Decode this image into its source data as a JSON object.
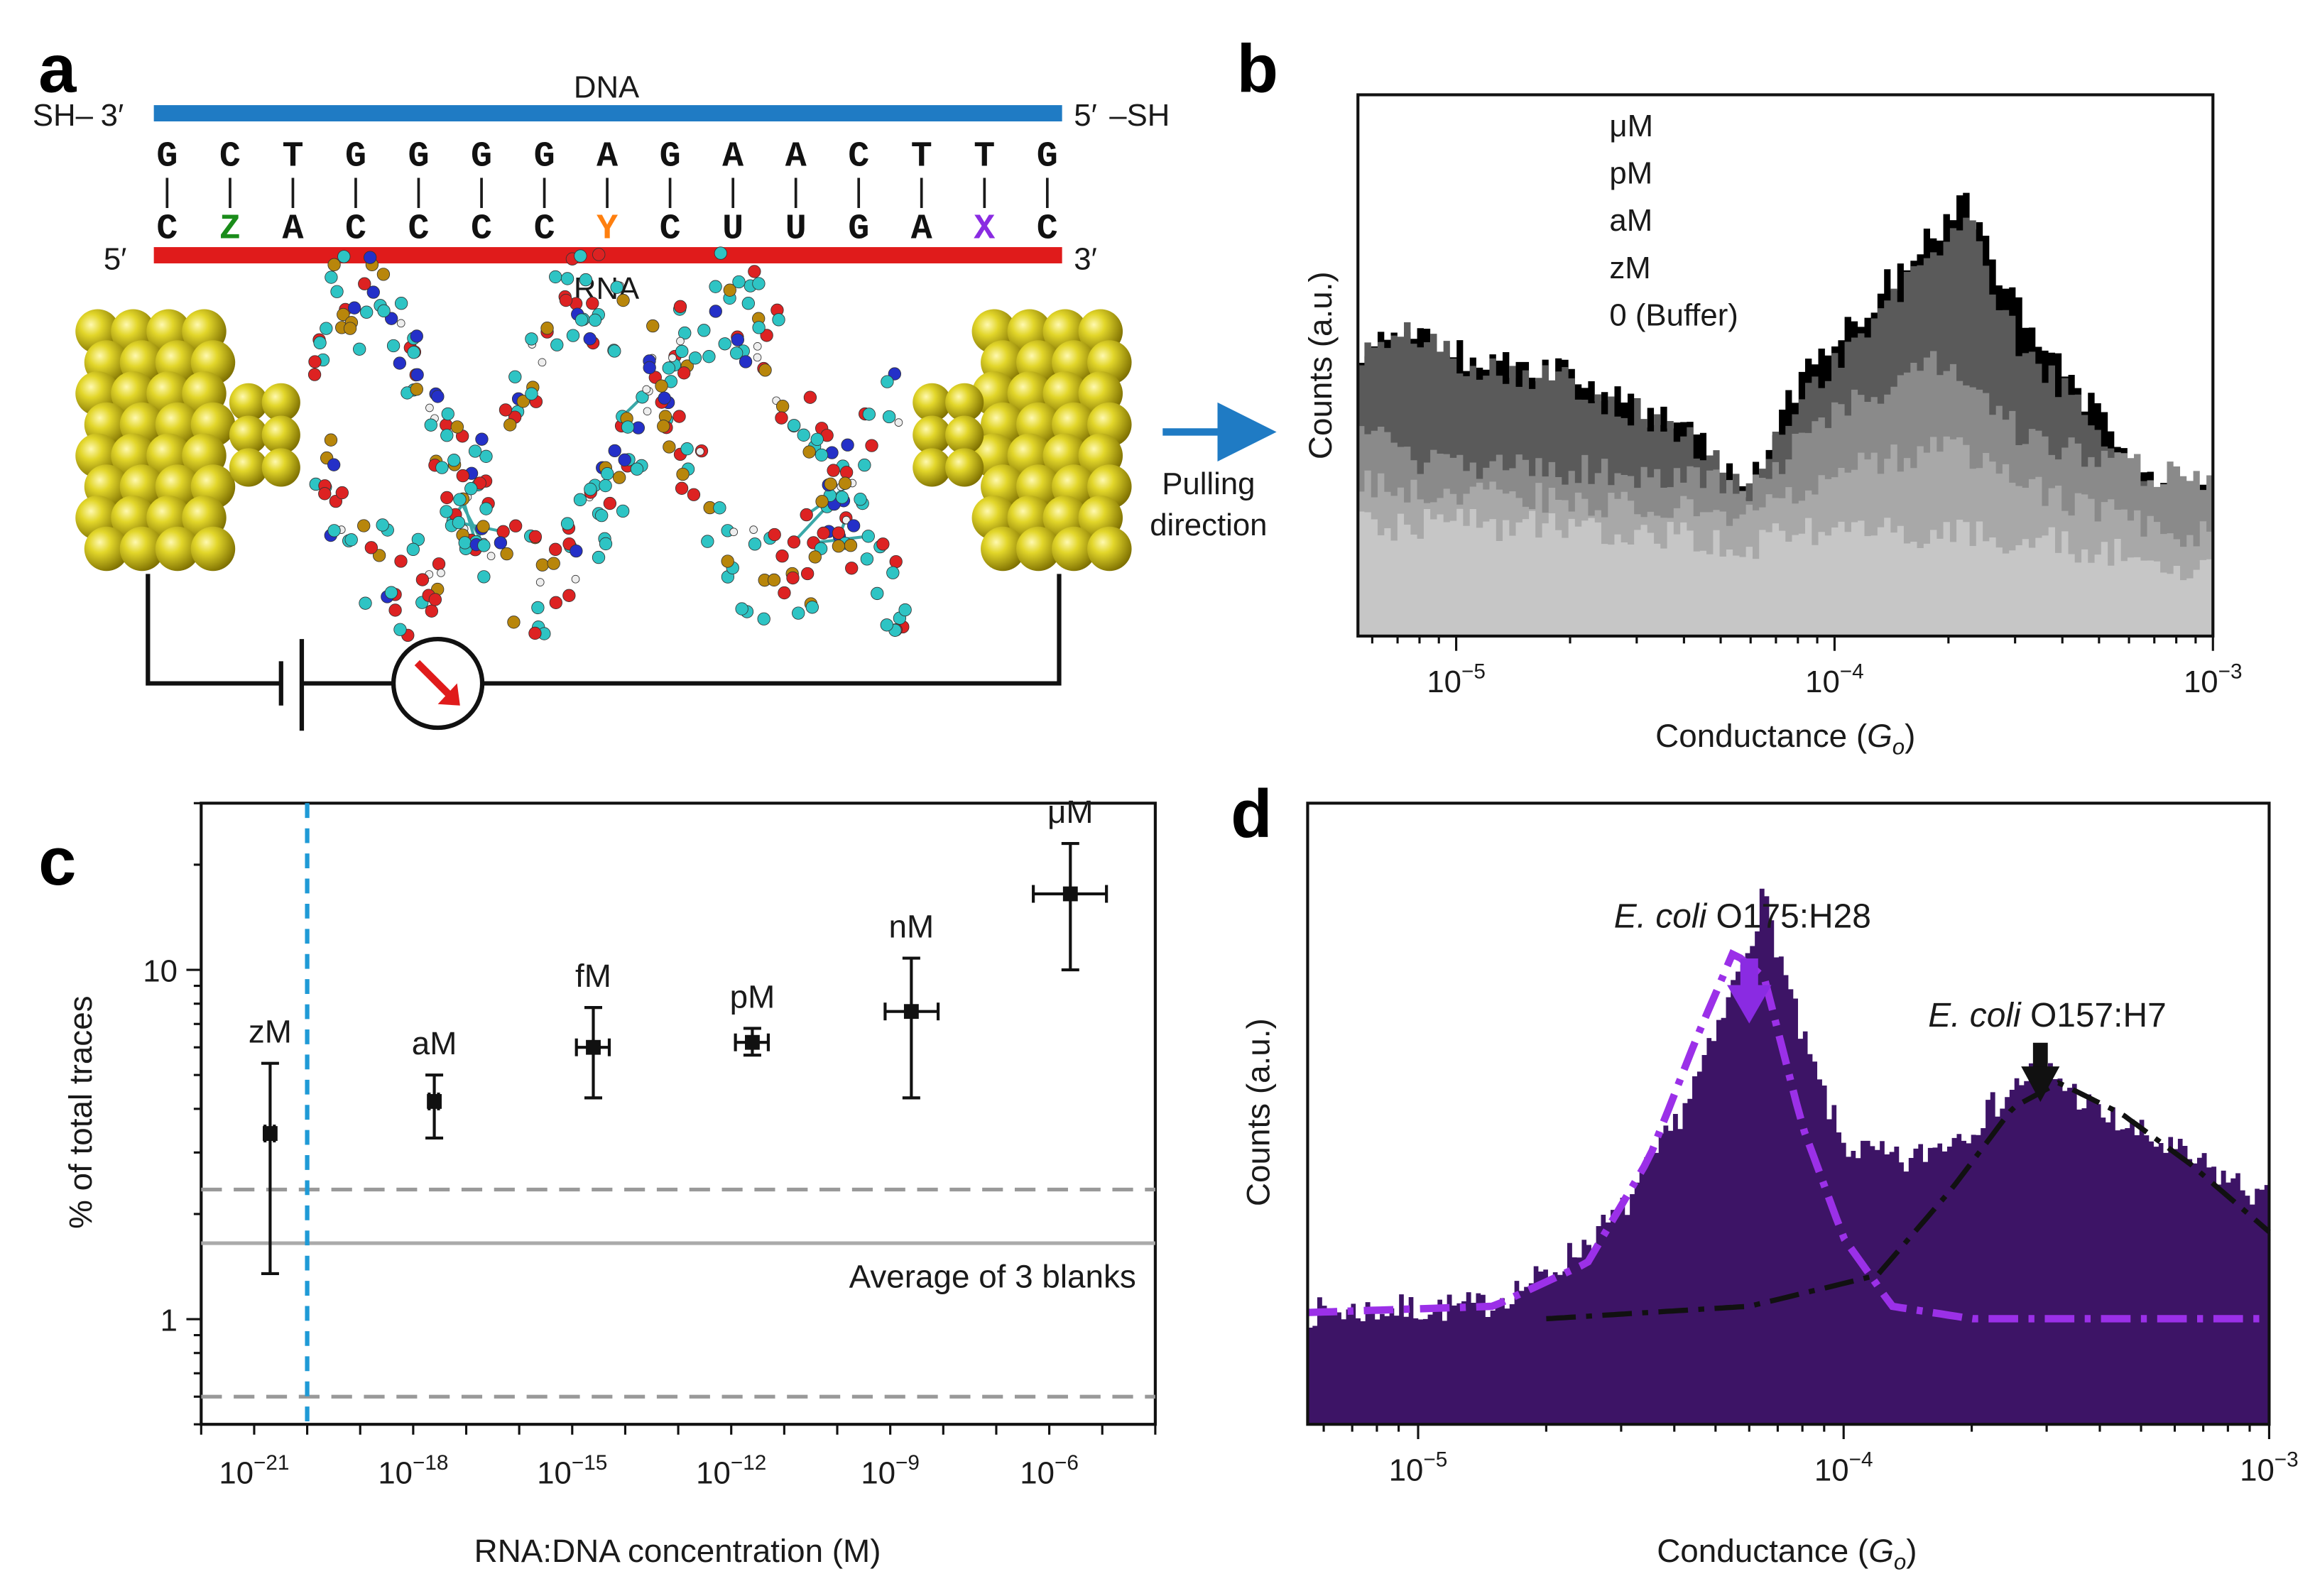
{
  "panel_labels": {
    "a": "a",
    "b": "b",
    "c": "c",
    "d": "d"
  },
  "panel_a": {
    "dna_label": "DNA",
    "rna_label": "RNA",
    "top_left": {
      "sh": "SH–",
      "end": "3′"
    },
    "top_right": {
      "end": "5′",
      "sh": "–SH"
    },
    "bottom_left": "5′",
    "bottom_right": "3′",
    "dna_sequence": [
      "G",
      "C",
      "T",
      "G",
      "G",
      "G",
      "G",
      "A",
      "G",
      "A",
      "A",
      "C",
      "T",
      "T",
      "G"
    ],
    "rna_sequence": [
      "C",
      "Z",
      "A",
      "C",
      "C",
      "C",
      "C",
      "Y",
      "C",
      "U",
      "U",
      "G",
      "A",
      "X",
      "C"
    ],
    "bond_symbol": "|",
    "pulling_label_1": "Pulling",
    "pulling_label_2": "direction",
    "colors": {
      "dna": "#1f7bc4",
      "rna": "#e01b1b",
      "three_prime": "#e0199a",
      "five_prime": "#e8b400",
      "Z": "#1a8c1a",
      "Y": "#ff7f0e",
      "X": "#8a2be2",
      "gold": "#d8cc1a",
      "arrow": "#1f7bc4"
    }
  },
  "chart_data": [
    {
      "id": "b",
      "type": "area",
      "xlabel": "Conductance (Go)",
      "xlabel_main": "Conductance (",
      "xlabel_var": "G",
      "xlabel_sub": "o",
      "xlabel_close": ")",
      "ylabel": "Counts (a.u.)",
      "xscale": "log",
      "xlim": [
        5.5e-06,
        0.001
      ],
      "x_ticks": [
        {
          "base": "10",
          "exp": "−5",
          "value": 1e-05
        },
        {
          "base": "10",
          "exp": "−4",
          "value": 0.0001
        },
        {
          "base": "10",
          "exp": "−3",
          "value": 0.001
        }
      ],
      "legend": [
        {
          "label": "μM",
          "color": "#000000"
        },
        {
          "label": "pM",
          "color": "#6e6e6e"
        },
        {
          "label": "aM",
          "color": "#8a8a8a"
        },
        {
          "label": "zM",
          "color": "#a8a8a8"
        },
        {
          "label": "0 (Buffer)",
          "color": "#c2c2c2"
        }
      ],
      "series": [
        {
          "name": "μM",
          "color": "#000000",
          "points": [
            [
              5.5e-06,
              0.52
            ],
            [
              8e-06,
              0.57
            ],
            [
              1e-05,
              0.52
            ],
            [
              2e-05,
              0.48
            ],
            [
              4e-05,
              0.38
            ],
            [
              6e-05,
              0.27
            ],
            [
              8e-05,
              0.47
            ],
            [
              0.00012,
              0.6
            ],
            [
              0.00018,
              0.74
            ],
            [
              0.00022,
              0.8
            ],
            [
              0.0003,
              0.62
            ],
            [
              0.00045,
              0.45
            ],
            [
              0.0006,
              0.33
            ],
            [
              0.0007,
              0.28
            ],
            [
              0.0008,
              0.26
            ],
            [
              0.001,
              0.25
            ]
          ]
        },
        {
          "name": "pM",
          "color": "#5a5a5a",
          "points": [
            [
              5.5e-06,
              0.52
            ],
            [
              8e-06,
              0.56
            ],
            [
              1e-05,
              0.51
            ],
            [
              2e-05,
              0.47
            ],
            [
              4e-05,
              0.37
            ],
            [
              6e-05,
              0.26
            ],
            [
              8e-05,
              0.44
            ],
            [
              0.00012,
              0.56
            ],
            [
              0.00018,
              0.7
            ],
            [
              0.00022,
              0.78
            ],
            [
              0.0003,
              0.55
            ],
            [
              0.00045,
              0.42
            ],
            [
              0.0006,
              0.3
            ],
            [
              0.0008,
              0.24
            ],
            [
              0.001,
              0.22
            ]
          ]
        },
        {
          "name": "aM",
          "color": "#8a8a8a",
          "points": [
            [
              5.5e-06,
              0.38
            ],
            [
              8e-06,
              0.32
            ],
            [
              1.5e-05,
              0.31
            ],
            [
              3e-05,
              0.3
            ],
            [
              6e-05,
              0.27
            ],
            [
              0.0001,
              0.42
            ],
            [
              0.00016,
              0.48
            ],
            [
              0.0002,
              0.52
            ],
            [
              0.0003,
              0.38
            ],
            [
              0.0005,
              0.32
            ],
            [
              0.001,
              0.28
            ]
          ]
        },
        {
          "name": "zM",
          "color": "#a8a8a8",
          "points": [
            [
              5.5e-06,
              0.28
            ],
            [
              1e-05,
              0.27
            ],
            [
              3e-05,
              0.24
            ],
            [
              6e-05,
              0.23
            ],
            [
              0.0001,
              0.3
            ],
            [
              0.0002,
              0.35
            ],
            [
              0.0003,
              0.28
            ],
            [
              0.0006,
              0.22
            ],
            [
              0.001,
              0.18
            ]
          ]
        },
        {
          "name": "0 (Buffer)",
          "color": "#c6c6c6",
          "points": [
            [
              5.5e-06,
              0.2
            ],
            [
              1e-05,
              0.21
            ],
            [
              3e-05,
              0.19
            ],
            [
              6e-05,
              0.17
            ],
            [
              0.0001,
              0.2
            ],
            [
              0.0002,
              0.19
            ],
            [
              0.0004,
              0.17
            ],
            [
              0.001,
              0.12
            ]
          ]
        }
      ]
    },
    {
      "id": "c",
      "type": "scatter",
      "xlabel": "RNA:DNA concentration (M)",
      "ylabel": "% of total traces",
      "xscale": "log",
      "yscale": "log",
      "xlim": [
        1e-22,
        0.0001
      ],
      "ylim": [
        0.5,
        30
      ],
      "x_ticks": [
        {
          "base": "10",
          "exp": "−21",
          "value": 1e-21
        },
        {
          "base": "10",
          "exp": "−18",
          "value": 1e-18
        },
        {
          "base": "10",
          "exp": "−15",
          "value": 1e-15
        },
        {
          "base": "10",
          "exp": "−12",
          "value": 1e-12
        },
        {
          "base": "10",
          "exp": "−9",
          "value": 1e-09
        },
        {
          "base": "10",
          "exp": "−6",
          "value": 1e-06
        }
      ],
      "y_ticks": [
        {
          "label": "1",
          "value": 1
        },
        {
          "label": "10",
          "value": 10
        }
      ],
      "points": [
        {
          "label": "zM",
          "x": 2e-21,
          "y": 3.4,
          "yerr_low": 1.35,
          "yerr_high": 5.4,
          "xerr_low": 1.6e-21,
          "xerr_high": 2.4e-21
        },
        {
          "label": "aM",
          "x": 2.5e-18,
          "y": 4.2,
          "yerr_low": 3.3,
          "yerr_high": 5.0,
          "xerr_low": 2e-18,
          "xerr_high": 3e-18
        },
        {
          "label": "fM",
          "x": 2.5e-15,
          "y": 6.0,
          "yerr_low": 4.3,
          "yerr_high": 7.8,
          "xerr_low": 1.2e-15,
          "xerr_high": 5e-15
        },
        {
          "label": "pM",
          "x": 2.5e-12,
          "y": 6.2,
          "yerr_low": 5.7,
          "yerr_high": 6.8,
          "xerr_low": 1.2e-12,
          "xerr_high": 5e-12
        },
        {
          "label": "nM",
          "x": 2.5e-09,
          "y": 7.6,
          "yerr_low": 4.3,
          "yerr_high": 10.8,
          "xerr_low": 8e-10,
          "xerr_high": 8e-09
        },
        {
          "label": "μM",
          "x": 2.5e-06,
          "y": 16.5,
          "yerr_low": 10.0,
          "yerr_high": 23.0,
          "xerr_low": 5e-07,
          "xerr_high": 1.2e-05
        }
      ],
      "blank_average": 1.65,
      "blank_upper": 2.35,
      "blank_lower": 0.6,
      "blank_label": "Average of 3 blanks",
      "vline_x": 1e-20
    },
    {
      "id": "d",
      "type": "area",
      "xlabel": "Conductance (Go)",
      "xlabel_main": "Conductance (",
      "xlabel_var": "G",
      "xlabel_sub": "o",
      "xlabel_close": ")",
      "ylabel": "Counts (a.u.)",
      "xscale": "log",
      "xlim": [
        5.5e-06,
        0.001
      ],
      "x_ticks": [
        {
          "base": "10",
          "exp": "−5",
          "value": 1e-05
        },
        {
          "base": "10",
          "exp": "−4",
          "value": 0.0001
        },
        {
          "base": "10",
          "exp": "−3",
          "value": 0.001
        }
      ],
      "annotations": [
        {
          "italic": "E. coli",
          "rest": " O175:H28",
          "color": "#8a2be2",
          "x": 6e-05
        },
        {
          "italic": "E. coli",
          "rest": " O157:H7",
          "color": "#111111",
          "x": 0.00029
        }
      ],
      "histogram": {
        "color": "#3d1466",
        "points": [
          [
            5.5e-06,
            0.18
          ],
          [
            1.4e-05,
            0.19
          ],
          [
            2e-05,
            0.24
          ],
          [
            3e-05,
            0.34
          ],
          [
            4e-05,
            0.48
          ],
          [
            5e-05,
            0.62
          ],
          [
            6.5e-05,
            0.85
          ],
          [
            8e-05,
            0.62
          ],
          [
            0.0001,
            0.45
          ],
          [
            0.00014,
            0.42
          ],
          [
            0.0002,
            0.48
          ],
          [
            0.00029,
            0.58
          ],
          [
            0.0004,
            0.5
          ],
          [
            0.0006,
            0.44
          ],
          [
            0.001,
            0.36
          ]
        ]
      },
      "fit_curves": [
        {
          "name": "E. coli O175:H28",
          "color": "#9b30e8",
          "center": 6e-05,
          "points": [
            [
              5.5e-06,
              0.18
            ],
            [
              1.5e-05,
              0.19
            ],
            [
              2.5e-05,
              0.26
            ],
            [
              3.5e-05,
              0.43
            ],
            [
              4.5e-05,
              0.62
            ],
            [
              5.5e-05,
              0.76
            ],
            [
              6.5e-05,
              0.72
            ],
            [
              8e-05,
              0.48
            ],
            [
              0.0001,
              0.3
            ],
            [
              0.00013,
              0.19
            ],
            [
              0.0002,
              0.17
            ],
            [
              0.001,
              0.17
            ]
          ]
        },
        {
          "name": "E. coli O157:H7",
          "color": "#111111",
          "center": 0.00029,
          "points": [
            [
              2e-05,
              0.17
            ],
            [
              6e-05,
              0.19
            ],
            [
              0.00012,
              0.24
            ],
            [
              0.00018,
              0.38
            ],
            [
              0.00025,
              0.51
            ],
            [
              0.00032,
              0.55
            ],
            [
              0.00045,
              0.5
            ],
            [
              0.00065,
              0.42
            ],
            [
              0.001,
              0.31
            ]
          ]
        }
      ]
    }
  ]
}
